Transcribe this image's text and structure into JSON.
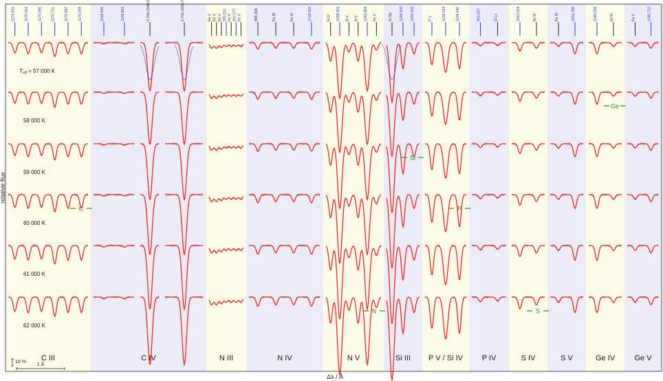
{
  "chart_data": {
    "type": "line",
    "title": "",
    "xlabel": "Δλ / Å",
    "ylabel": "relative flux",
    "legend": "none",
    "grid": false,
    "scale_bar": {
      "flux_label": "10 %",
      "wavelength_label": "1 Å"
    },
    "teff_prefix": "T",
    "teff_subscript": "eff",
    "teff_label_first": " = 57 000 K",
    "temperatures": [
      "57 000 K",
      "58 000 K",
      "59 000 K",
      "60 000 K",
      "61 000 K",
      "62 000 K"
    ],
    "panels": [
      {
        "ion": "C III",
        "shade": "yellow",
        "lines": [
          {
            "label": "1174.933",
            "color": "blue",
            "depth": 0.55
          },
          {
            "label": "1175.263",
            "color": "blue",
            "depth": 0.6
          },
          {
            "label": "1175.590",
            "color": "blue",
            "depth": 0.55
          },
          {
            "label": "1175.711",
            "color": "blue",
            "depth": 0.75
          },
          {
            "label": "1175.987",
            "color": "blue",
            "depth": 0.6
          },
          {
            "label": "1176.369",
            "color": "blue",
            "depth": 0.6
          }
        ]
      },
      {
        "ion": "C IV",
        "shade": "blue",
        "lines": [
          {
            "label": "1168.849",
            "color": "blue",
            "depth": 0.06
          },
          {
            "label": "1168.993",
            "color": "blue",
            "depth": 0.06
          }
        ]
      },
      {
        "ion": "",
        "shade": "blue",
        "lines": [
          {
            "label": "C IVis 1548.203",
            "color": "black",
            "depth": 2.6,
            "ism": true
          }
        ]
      },
      {
        "ion": "",
        "shade": "blue",
        "lines": [
          {
            "label": "C IVis 1550.772",
            "color": "black",
            "depth": 2.6,
            "ism": true
          }
        ]
      },
      {
        "ion": "N III",
        "shade": "yellow",
        "lines": [
          {
            "label": "Fe V",
            "color": "black",
            "depth": 0.3
          },
          {
            "label": "Fe V",
            "color": "black",
            "depth": 0.3
          },
          {
            "label": "Fe V",
            "color": "black",
            "depth": 0.25
          },
          {
            "label": "991.511",
            "color": "blue",
            "depth": 0.2
          },
          {
            "label": "Fe V",
            "color": "black",
            "depth": 0.2
          },
          {
            "label": "991.577",
            "color": "blue",
            "depth": 0.2
          },
          {
            "label": "Fe V",
            "color": "black",
            "depth": 0.2
          }
        ]
      },
      {
        "ion": "N IV",
        "shade": "blue",
        "lines": [
          {
            "label": "955.334",
            "color": "black",
            "depth": 0.35
          },
          {
            "label": "Fe IV",
            "color": "black",
            "depth": 0.3
          },
          {
            "label": "Fe IV",
            "color": "black",
            "depth": 0.3
          },
          {
            "label": "1718.550",
            "color": "blue",
            "depth": 0.35
          }
        ]
      },
      {
        "ion": "N V",
        "shade": "yellow",
        "lines": [
          {
            "label": "N IV",
            "color": "black",
            "depth": 1.0
          },
          {
            "label": "1238.821",
            "color": "blue",
            "depth": 3.0
          },
          {
            "label": "N V",
            "color": "black",
            "depth": 0.5
          },
          {
            "label": "N V",
            "color": "black",
            "depth": 1.0
          },
          {
            "label": "1242.804",
            "color": "blue",
            "depth": 2.6
          },
          {
            "label": "Fe V",
            "color": "black",
            "depth": 0.4
          }
        ]
      },
      {
        "ion": "Si III",
        "shade": "blue",
        "lines": [
          {
            "label": "Si IIis",
            "color": "black",
            "depth": 3.2,
            "ism": true
          },
          {
            "label": "1206.500",
            "color": "blue",
            "depth": 1.4
          },
          {
            "label": "1206.555",
            "color": "blue",
            "depth": 0.6
          }
        ]
      },
      {
        "ion": "P V / Si IV",
        "shade": "yellow",
        "lines": [
          {
            "label": "P V",
            "color": "blue",
            "depth": 1.2
          },
          {
            "label": "1128.324",
            "color": "blue",
            "depth": 1.6
          },
          {
            "label": "1128.340",
            "color": "blue",
            "depth": 1.4
          }
        ]
      },
      {
        "ion": "P IV",
        "shade": "blue",
        "lines": [
          {
            "label": "950.657",
            "color": "blue",
            "depth": 0.18
          },
          {
            "label": "O Lz",
            "color": "black",
            "depth": 0.15
          }
        ]
      },
      {
        "ion": "S IV",
        "shade": "yellow",
        "lines": [
          {
            "label": "1062.664",
            "color": "blue",
            "depth": 0.45
          },
          {
            "label": "Ni VI",
            "color": "black",
            "depth": 0.3
          }
        ]
      },
      {
        "ion": "S V",
        "shade": "blue",
        "lines": [
          {
            "label": "Fe IV",
            "color": "black",
            "depth": 0.2
          },
          {
            "label": "1501.789",
            "color": "blue",
            "depth": 0.6
          }
        ]
      },
      {
        "ion": "Ge IV",
        "shade": "yellow",
        "lines": [
          {
            "label": "1189.028",
            "color": "blue",
            "depth": 0.6
          },
          {
            "label": "Ni VI",
            "color": "black",
            "depth": 0.2
          }
        ]
      },
      {
        "ion": "Ge V",
        "shade": "blue",
        "lines": [
          {
            "label": "Fe V",
            "color": "black",
            "depth": 0.2
          },
          {
            "label": "1045.712",
            "color": "blue",
            "depth": 0.3
          }
        ]
      }
    ],
    "best_fit_markers": [
      {
        "element": "C",
        "panel": "C III",
        "temperature": "60 000 K"
      },
      {
        "element": "N",
        "panel": "N V",
        "temperature": "62 000 K"
      },
      {
        "element": "Si",
        "panel": "Si III",
        "temperature": "59 000 K"
      },
      {
        "element": "P",
        "panel": "P V / Si IV",
        "temperature": "60 000 K"
      },
      {
        "element": "S",
        "panel": "S IV",
        "temperature": "62 000 K"
      },
      {
        "element": "Ge",
        "panel": "Ge IV",
        "temperature": "58 000 K"
      }
    ],
    "series": [
      {
        "name": "observation",
        "color": "#808080"
      },
      {
        "name": "model",
        "color": "#e8241c"
      },
      {
        "name": "model (pure photospheric)",
        "color": "#1a3be0",
        "style": "dotted"
      }
    ],
    "colors": {
      "shade_yellow": "#fdfde9",
      "shade_blue": "#ececf9",
      "line_blue": "#2638d8",
      "line_black": "#222222",
      "marker_green": "#1f8a2a",
      "model": "#e8241c",
      "observation": "#8c8c8c",
      "ism": "#1a3be0"
    }
  }
}
